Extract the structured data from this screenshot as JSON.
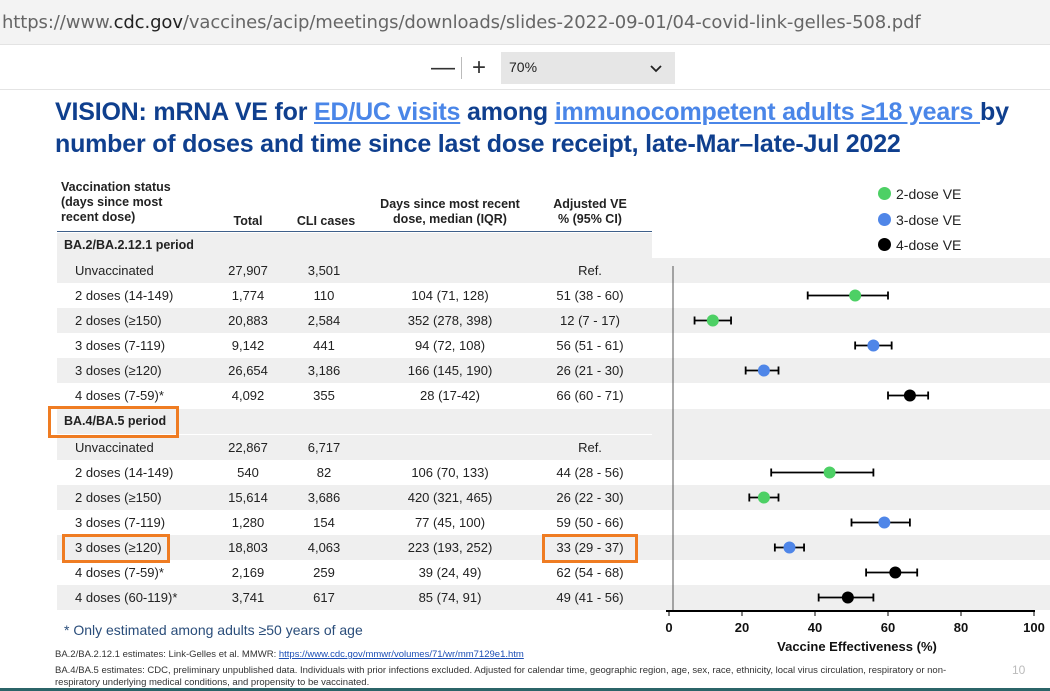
{
  "browser": {
    "url_prefix": "https://www.",
    "url_domain": "cdc.gov",
    "url_path": "/vaccines/acip/meetings/downloads/slides-2022-09-01/04-covid-link-gelles-508.pdf"
  },
  "toolbar": {
    "zoom_out_symbol": "—",
    "zoom_in_symbol": "+",
    "zoom_value": "70%"
  },
  "slide": {
    "title_l1_a": "VISION: mRNA VE for ",
    "title_l1_link1": "ED/UC visits",
    "title_l1_b": " among ",
    "title_l1_link2": "immunocompetent adults ≥18 years ",
    "title_l1_c": "by",
    "title_l2": "number of doses and time since last dose receipt, late-Mar–late-Jul 2022",
    "headers": {
      "status": [
        "Vaccination status",
        "(days since most",
        "recent dose)"
      ],
      "total": "Total",
      "cli": "CLI cases",
      "days": [
        "Days since most recent",
        "dose, median (IQR)"
      ],
      "ve": [
        "Adjusted VE",
        "% (95% CI)"
      ]
    },
    "periods": [
      "BA.2/BA.2.12.1 period",
      "BA.4/BA.5 period"
    ],
    "rows": [
      {
        "label": "Unvaccinated",
        "total": "27,907",
        "cli": "3,501",
        "days": "",
        "ve": "Ref."
      },
      {
        "label": "2 doses (14-149)",
        "total": "1,774",
        "cli": "110",
        "days": "104 (71, 128)",
        "ve": "51 (38 - 60)"
      },
      {
        "label": "2 doses (≥150)",
        "total": "20,883",
        "cli": "2,584",
        "days": "352 (278, 398)",
        "ve": "12 (7 - 17)"
      },
      {
        "label": "3 doses (7-119)",
        "total": "9,142",
        "cli": "441",
        "days": "94 (72, 108)",
        "ve": "56 (51 - 61)"
      },
      {
        "label": "3 doses (≥120)",
        "total": "26,654",
        "cli": "3,186",
        "days": "166 (145, 190)",
        "ve": "26 (21 - 30)"
      },
      {
        "label": "4 doses (7-59)*",
        "total": "4,092",
        "cli": "355",
        "days": "28 (17-42)",
        "ve": "66 (60 - 71)"
      },
      {
        "label": "Unvaccinated",
        "total": "22,867",
        "cli": "6,717",
        "days": "",
        "ve": "Ref."
      },
      {
        "label": "2 doses (14-149)",
        "total": "540",
        "cli": "82",
        "days": "106 (70, 133)",
        "ve": "44 (28 - 56)"
      },
      {
        "label": "2 doses (≥150)",
        "total": "15,614",
        "cli": "3,686",
        "days": "420 (321, 465)",
        "ve": "26 (22 - 30)"
      },
      {
        "label": "3 doses (7-119)",
        "total": "1,280",
        "cli": "154",
        "days": "77 (45, 100)",
        "ve": "59 (50 - 66)"
      },
      {
        "label": "3 doses (≥120)",
        "total": "18,803",
        "cli": "4,063",
        "days": "223 (193, 252)",
        "ve": "33 (29 - 37)"
      },
      {
        "label": "4 doses (7-59)*",
        "total": "2,169",
        "cli": "259",
        "days": "39 (24, 49)",
        "ve": "62 (54 - 68)"
      },
      {
        "label": "4 doses (60-119)*",
        "total": "3,741",
        "cli": "617",
        "days": "85 (74, 91)",
        "ve": "49 (41 - 56)"
      }
    ],
    "footnote": "* Only estimated among adults ≥50 years of age",
    "source1_text": "BA.2/BA.2.12.1 estimates: Link-Gelles et al. MMWR: ",
    "source1_link": "https://www.cdc.gov/mmwr/volumes/71/wr/mm7129e1.htm",
    "source2_l1": "BA.4/BA.5 estimates: CDC, preliminary unpublished data. Individuals with prior infections excluded. Adjusted for calendar time, geographic region, age, sex, race, ethnicity, local virus circulation, respiratory or non-",
    "source2_l2": "respiratory underlying medical conditions, and propensity to be vaccinated.",
    "page_number": "10"
  },
  "chart_data": {
    "type": "scatter",
    "xlabel": "Vaccine Effectiveness (%)",
    "xlim": [
      0,
      100
    ],
    "xticks": [
      "0",
      "20",
      "40",
      "60",
      "80",
      "100"
    ],
    "legend": [
      "2-dose VE",
      "3-dose VE",
      "4-dose VE"
    ],
    "legend_position": "top-right",
    "colors": {
      "2-dose VE": "#4dd065",
      "3-dose VE": "#4f86e8",
      "4-dose VE": "#000000"
    },
    "points": [
      {
        "row": 1,
        "series": "2-dose VE",
        "ve": 51,
        "lo": 38,
        "hi": 60
      },
      {
        "row": 2,
        "series": "2-dose VE",
        "ve": 12,
        "lo": 7,
        "hi": 17
      },
      {
        "row": 3,
        "series": "3-dose VE",
        "ve": 56,
        "lo": 51,
        "hi": 61
      },
      {
        "row": 4,
        "series": "3-dose VE",
        "ve": 26,
        "lo": 21,
        "hi": 30
      },
      {
        "row": 5,
        "series": "4-dose VE",
        "ve": 66,
        "lo": 60,
        "hi": 71
      },
      {
        "row": 7,
        "series": "2-dose VE",
        "ve": 44,
        "lo": 28,
        "hi": 56
      },
      {
        "row": 8,
        "series": "2-dose VE",
        "ve": 26,
        "lo": 22,
        "hi": 30
      },
      {
        "row": 9,
        "series": "3-dose VE",
        "ve": 59,
        "lo": 50,
        "hi": 66
      },
      {
        "row": 10,
        "series": "3-dose VE",
        "ve": 33,
        "lo": 29,
        "hi": 37
      },
      {
        "row": 11,
        "series": "4-dose VE",
        "ve": 62,
        "lo": 54,
        "hi": 68
      },
      {
        "row": 12,
        "series": "4-dose VE",
        "ve": 49,
        "lo": 41,
        "hi": 56
      }
    ]
  }
}
